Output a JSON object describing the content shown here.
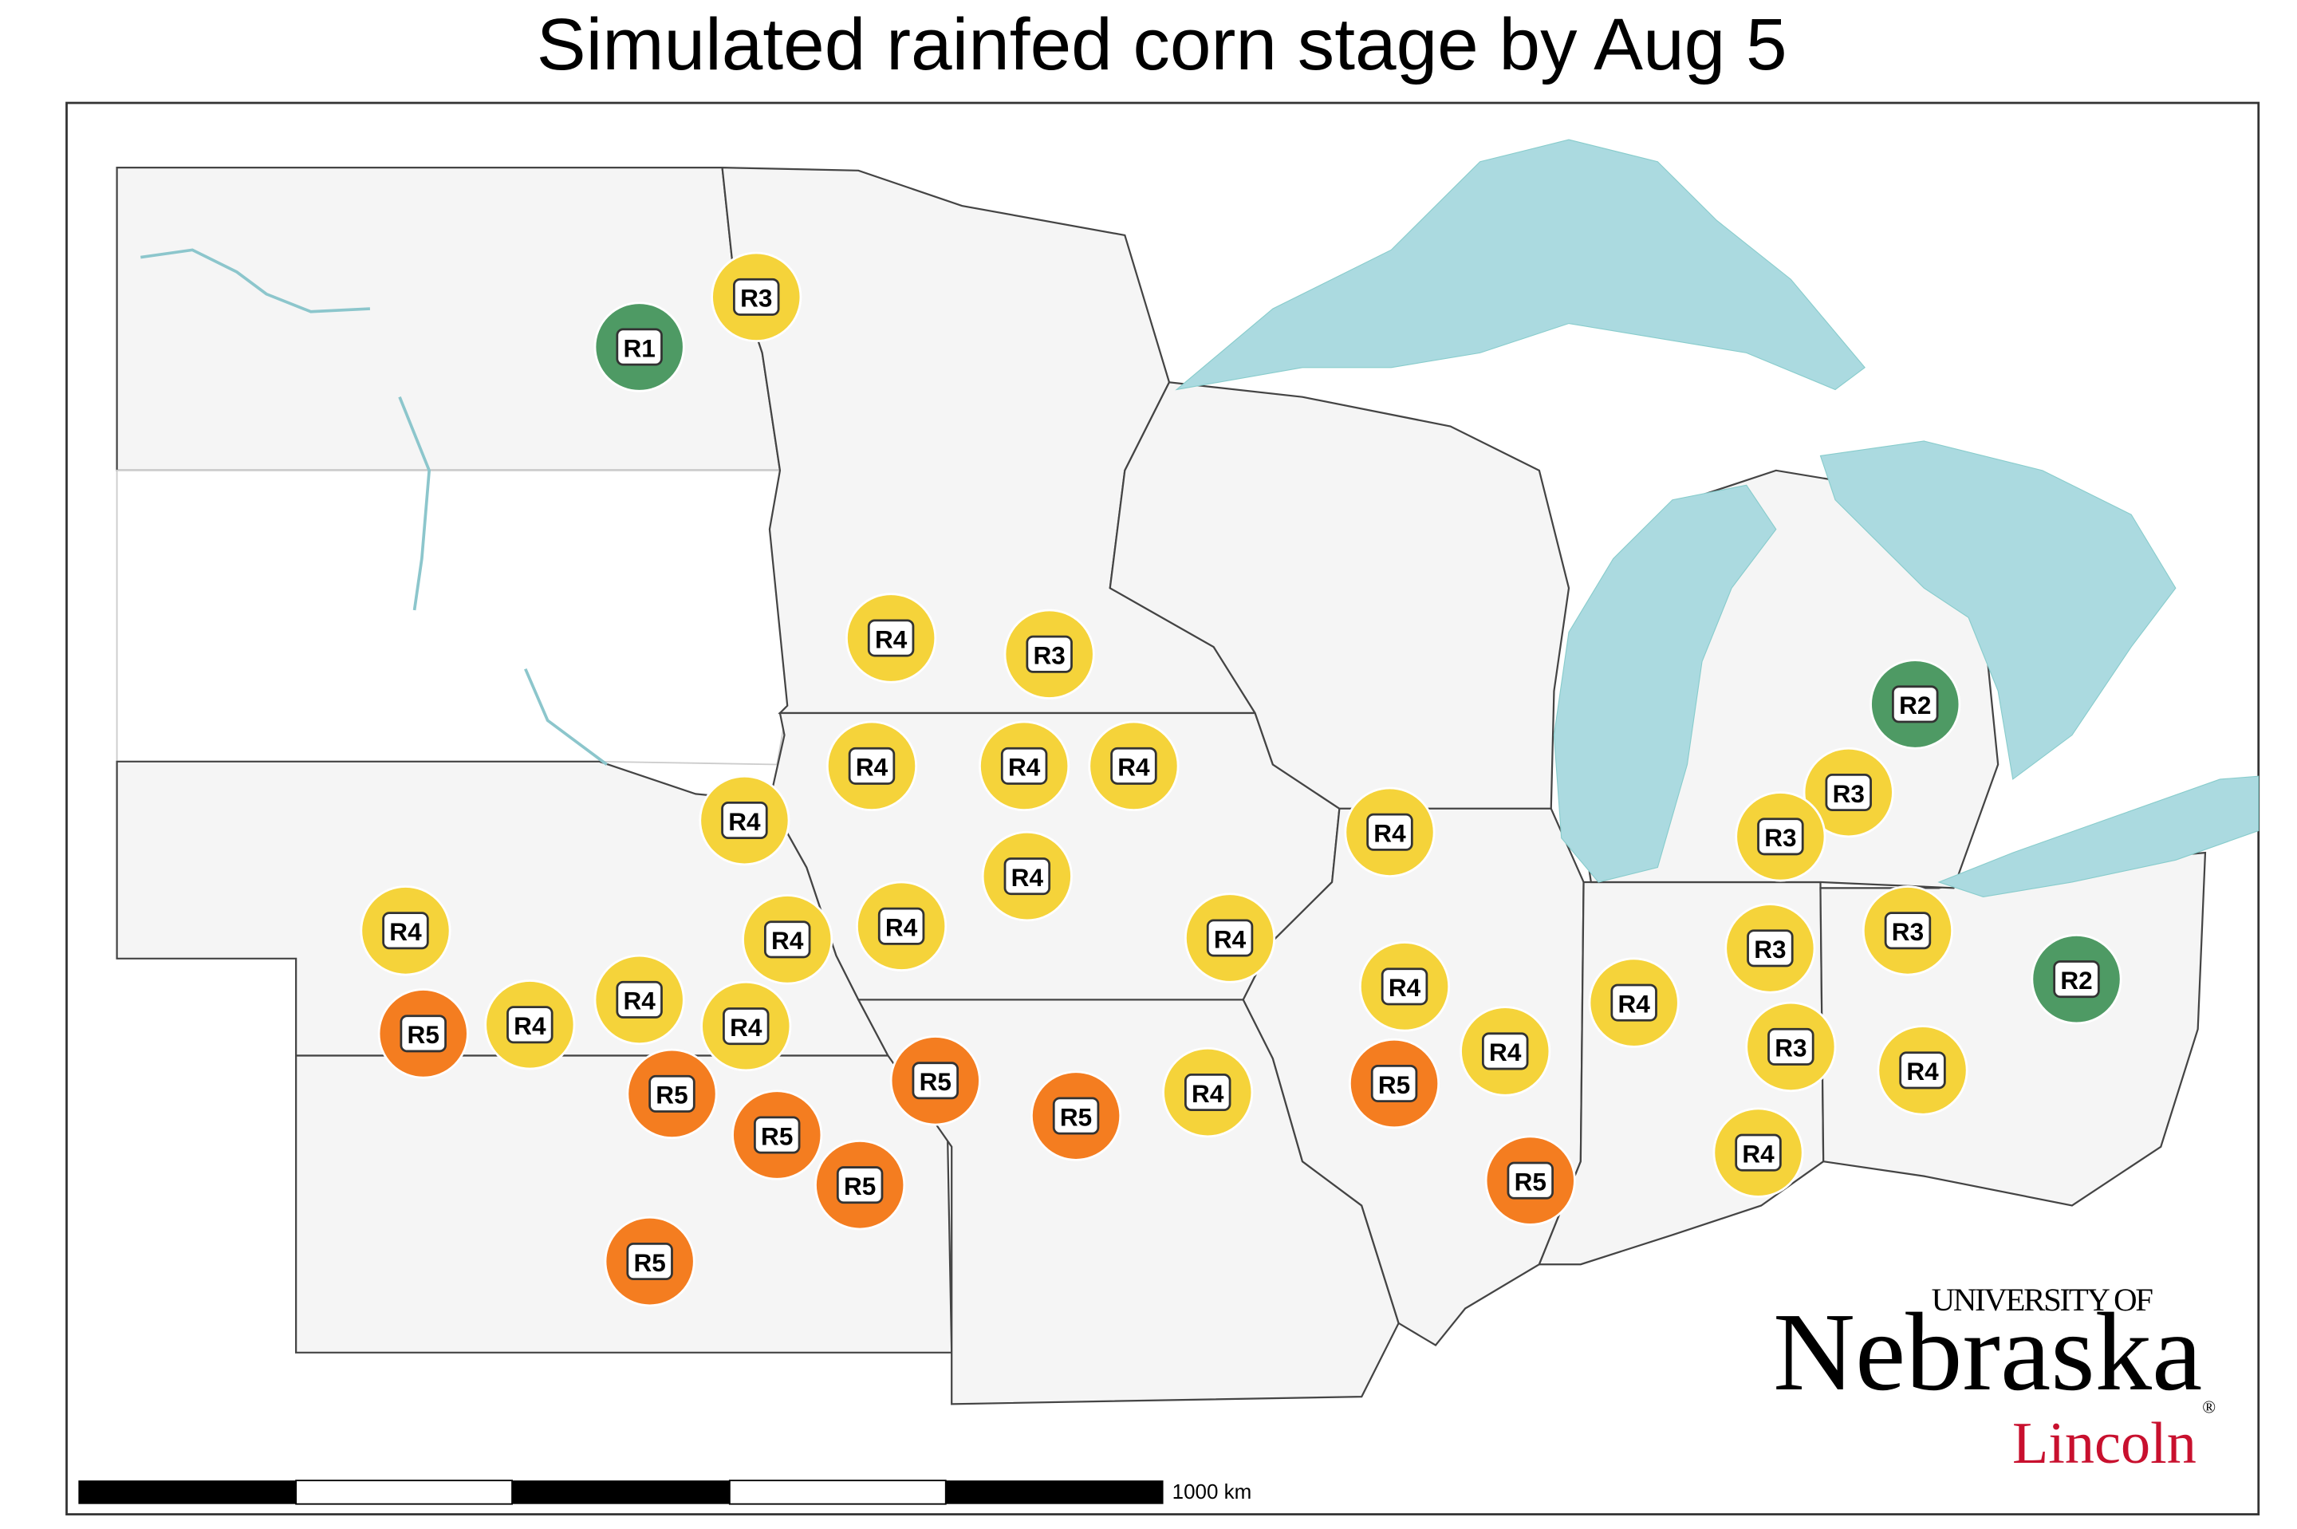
{
  "title": "Simulated rainfed corn stage by Aug 5",
  "stage_colors": {
    "R1": "#4e9a64",
    "R2": "#4e9a64",
    "R3": "#f5d33a",
    "R4": "#f5d33a",
    "R5": "#f47d20"
  },
  "markers": [
    "R3",
    "R1",
    "R4",
    "R3",
    "R4",
    "R4",
    "R4",
    "R4",
    "R4",
    "R4",
    "R4",
    "R4",
    "R4",
    "R4",
    "R4",
    "R4",
    "R4",
    "R4",
    "R5",
    "R5",
    "R5",
    "R5",
    "R5",
    "R5",
    "R5",
    "R4",
    "R5",
    "R4",
    "R5",
    "R4",
    "R3",
    "R3",
    "R4",
    "R3",
    "R4",
    "R2",
    "R2",
    "R3",
    "R3"
  ],
  "scale_bar": {
    "label": "1000 km"
  },
  "logo": {
    "top": "UNIVERSITY OF",
    "name": "Nebraska",
    "sub": "Lincoln",
    "mark": "®"
  }
}
